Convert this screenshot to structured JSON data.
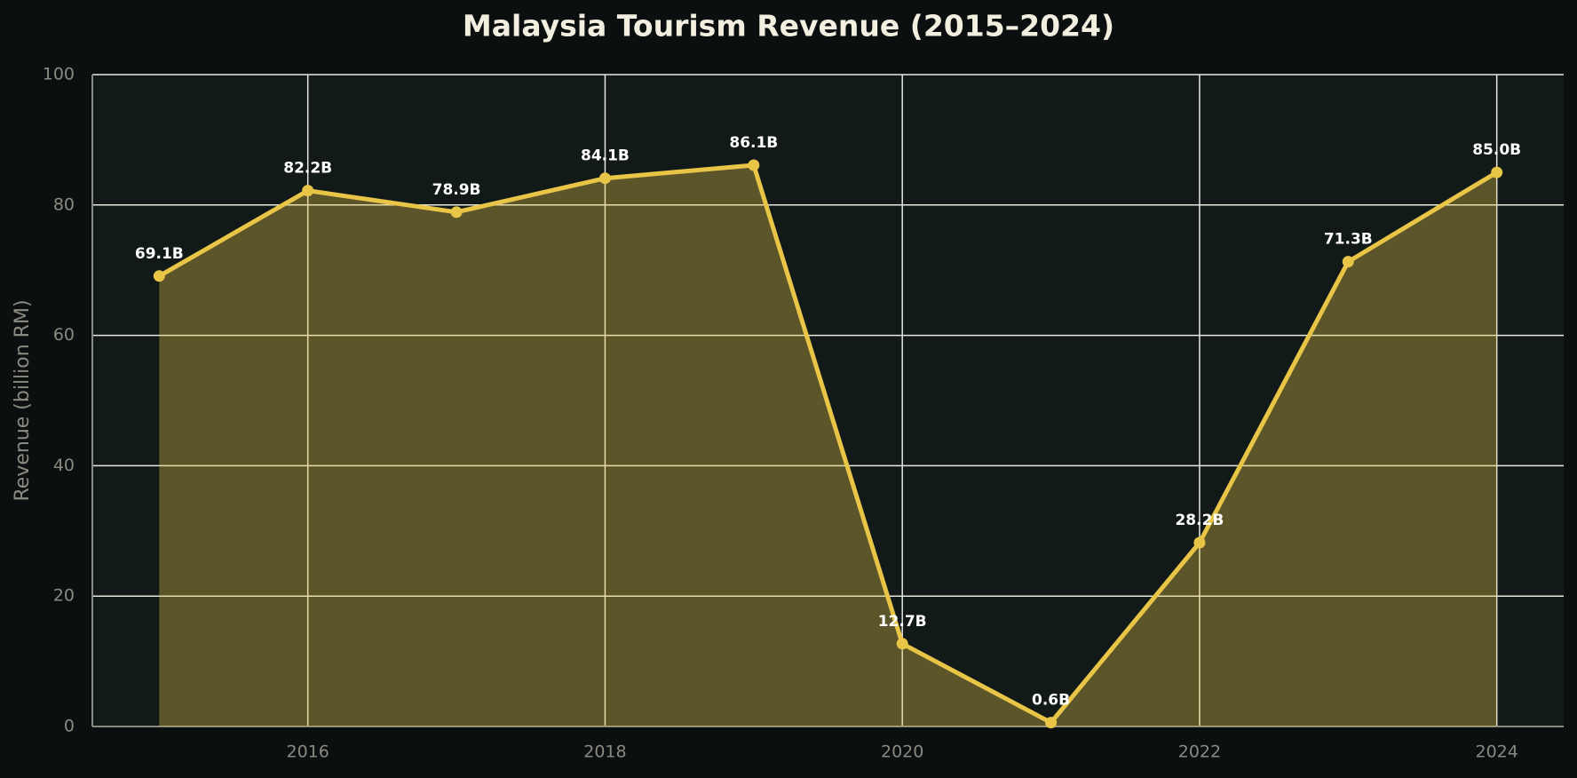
{
  "chart_data": {
    "type": "area-line",
    "title": "Malaysia Tourism Revenue (2015–2024)",
    "y_label": "Revenue (billion RM)",
    "x": [
      2015,
      2016,
      2017,
      2018,
      2019,
      2020,
      2021,
      2022,
      2023,
      2024
    ],
    "values": [
      69.1,
      82.2,
      78.9,
      84.1,
      86.1,
      12.7,
      0.6,
      28.2,
      71.3,
      85.0
    ],
    "value_labels": [
      "69.1B",
      "82.2B",
      "78.9B",
      "84.1B",
      "86.1B",
      "12.7B",
      "0.6B",
      "28.2B",
      "71.3B",
      "85.0B"
    ],
    "color": "#e8c547",
    "xlim": [
      2014.55,
      2024.45
    ],
    "xticks": [
      2016,
      2018,
      2020,
      2022,
      2024
    ],
    "ylim": [
      0,
      100
    ],
    "yticks": [
      0,
      20,
      40,
      60,
      80,
      100
    ],
    "grid": true
  }
}
